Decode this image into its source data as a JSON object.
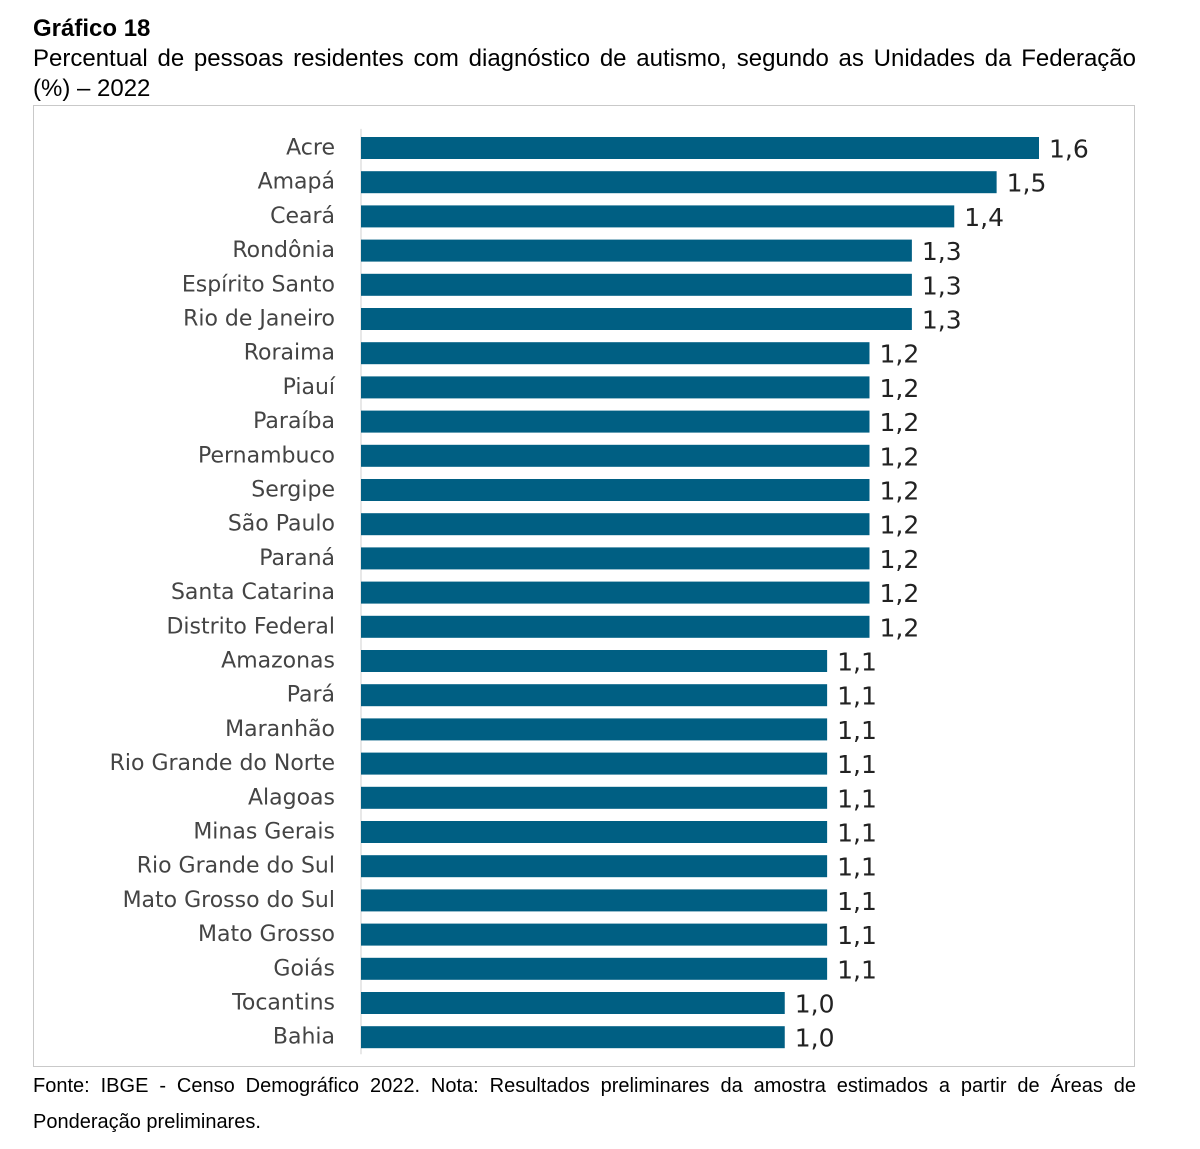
{
  "heading": {
    "label": "Gráfico 18",
    "title": "Percentual de pessoas residentes com diagnóstico de autismo, segundo as Unidades da Federação (%) – 2022"
  },
  "footnote": "Fonte: IBGE - Censo Demográfico 2022. Nota: Resultados preliminares da amostra estimados a partir de Áreas de Ponderação preliminares.",
  "chart_data": {
    "type": "bar",
    "orientation": "horizontal",
    "title": "Percentual de pessoas residentes com diagnóstico de autismo, segundo as Unidades da Federação (%) – 2022",
    "bar_color": "#005f83",
    "decimal_separator": ",",
    "xlim": [
      0,
      1.6
    ],
    "grid": false,
    "categories": [
      "Acre",
      "Amapá",
      "Ceará",
      "Rondônia",
      "Espírito Santo",
      "Rio de Janeiro",
      "Roraima",
      "Piauí",
      "Paraíba",
      "Pernambuco",
      "Sergipe",
      "São Paulo",
      "Paraná",
      "Santa Catarina",
      "Distrito Federal",
      "Amazonas",
      "Pará",
      "Maranhão",
      "Rio Grande do Norte",
      "Alagoas",
      "Minas Gerais",
      "Rio Grande do Sul",
      "Mato Grosso do Sul",
      "Mato Grosso",
      "Goiás",
      "Tocantins",
      "Bahia"
    ],
    "values": [
      1.6,
      1.5,
      1.4,
      1.3,
      1.3,
      1.3,
      1.2,
      1.2,
      1.2,
      1.2,
      1.2,
      1.2,
      1.2,
      1.2,
      1.2,
      1.1,
      1.1,
      1.1,
      1.1,
      1.1,
      1.1,
      1.1,
      1.1,
      1.1,
      1.1,
      1.0,
      1.0
    ]
  }
}
